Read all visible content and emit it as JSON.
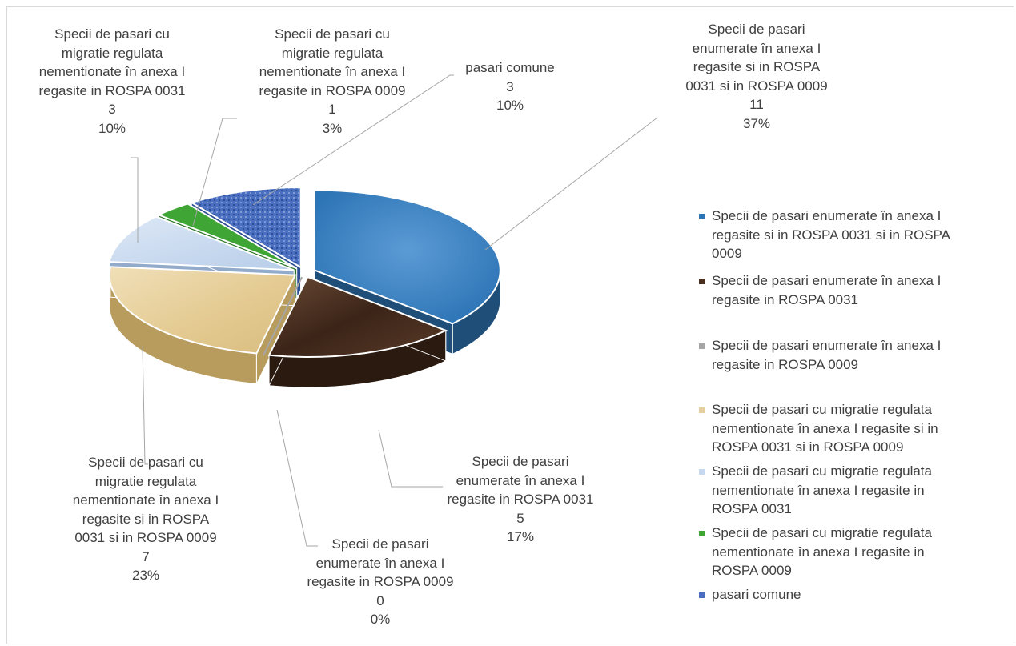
{
  "chart_data": {
    "type": "pie",
    "title": "",
    "legend_position": "right",
    "slices": [
      {
        "name": "Specii de pasari enumerate în anexa I regasite si in ROSPA 0031 si in ROSPA 0009",
        "value": 11,
        "percent": "37%",
        "color": "#2e75b6",
        "label_lines": [
          "Specii de pasari",
          "enumerate în anexa I",
          "regasite si in ROSPA",
          "0031 si in ROSPA 0009"
        ]
      },
      {
        "name": "Specii de pasari enumerate în anexa I regasite in ROSPA 0031",
        "value": 5,
        "percent": "17%",
        "color": "#4a2e1e",
        "label_lines": [
          "Specii de pasari",
          "enumerate în anexa I",
          "regasite in ROSPA 0031"
        ]
      },
      {
        "name": "Specii de pasari enumerate în anexa I regasite in ROSPA 0009",
        "value": 0,
        "percent": "0%",
        "color": "#a6a6a6",
        "label_lines": [
          "Specii de pasari",
          "enumerate în anexa I",
          "regasite in ROSPA 0009"
        ]
      },
      {
        "name": "Specii de pasari cu migratie regulata nementionate în anexa I regasite si in ROSPA 0031 si in ROSPA 0009",
        "value": 7,
        "percent": "23%",
        "color": "#e6cf9c",
        "label_lines": [
          "Specii de pasari cu",
          "migratie regulata",
          "nementionate în anexa I",
          "regasite si in ROSPA",
          "0031 si in ROSPA 0009"
        ]
      },
      {
        "name": "Specii de pasari cu migratie regulata nementionate în anexa I regasite in ROSPA 0031",
        "value": 3,
        "percent": "10%",
        "color": "#c6d9f1",
        "label_lines": [
          "Specii de pasari cu",
          "migratie regulata",
          "nementionate în anexa I",
          "regasite in ROSPA 0031"
        ]
      },
      {
        "name": "Specii de pasari cu migratie regulata nementionate în anexa I regasite  in ROSPA 0009",
        "value": 1,
        "percent": "3%",
        "color": "#3fa535",
        "label_lines": [
          "Specii de pasari cu",
          "migratie regulata",
          "nementionate în anexa I",
          "regasite  in ROSPA 0009"
        ]
      },
      {
        "name": "pasari comune",
        "value": 3,
        "percent": "10%",
        "color": "#4a6fc0",
        "label_lines": [
          "pasari comune"
        ]
      }
    ],
    "legend_lines": [
      [
        "Specii de pasari enumerate în anexa I",
        "regasite si in ROSPA 0031 si in ROSPA",
        "0009"
      ],
      [
        "Specii de pasari enumerate în anexa I",
        "regasite in ROSPA 0031"
      ],
      [
        "Specii de pasari enumerate în anexa I",
        "regasite in ROSPA 0009"
      ],
      [
        "Specii de pasari cu migratie regulata",
        "nementionate în anexa I regasite si in",
        "ROSPA 0031 si in ROSPA 0009"
      ],
      [
        "Specii de pasari cu migratie regulata",
        "nementionate în anexa I regasite in",
        "ROSPA 0031"
      ],
      [
        "Specii de pasari cu migratie regulata",
        "nementionate în anexa I regasite  in",
        "ROSPA 0009"
      ],
      [
        "pasari comune"
      ]
    ]
  }
}
